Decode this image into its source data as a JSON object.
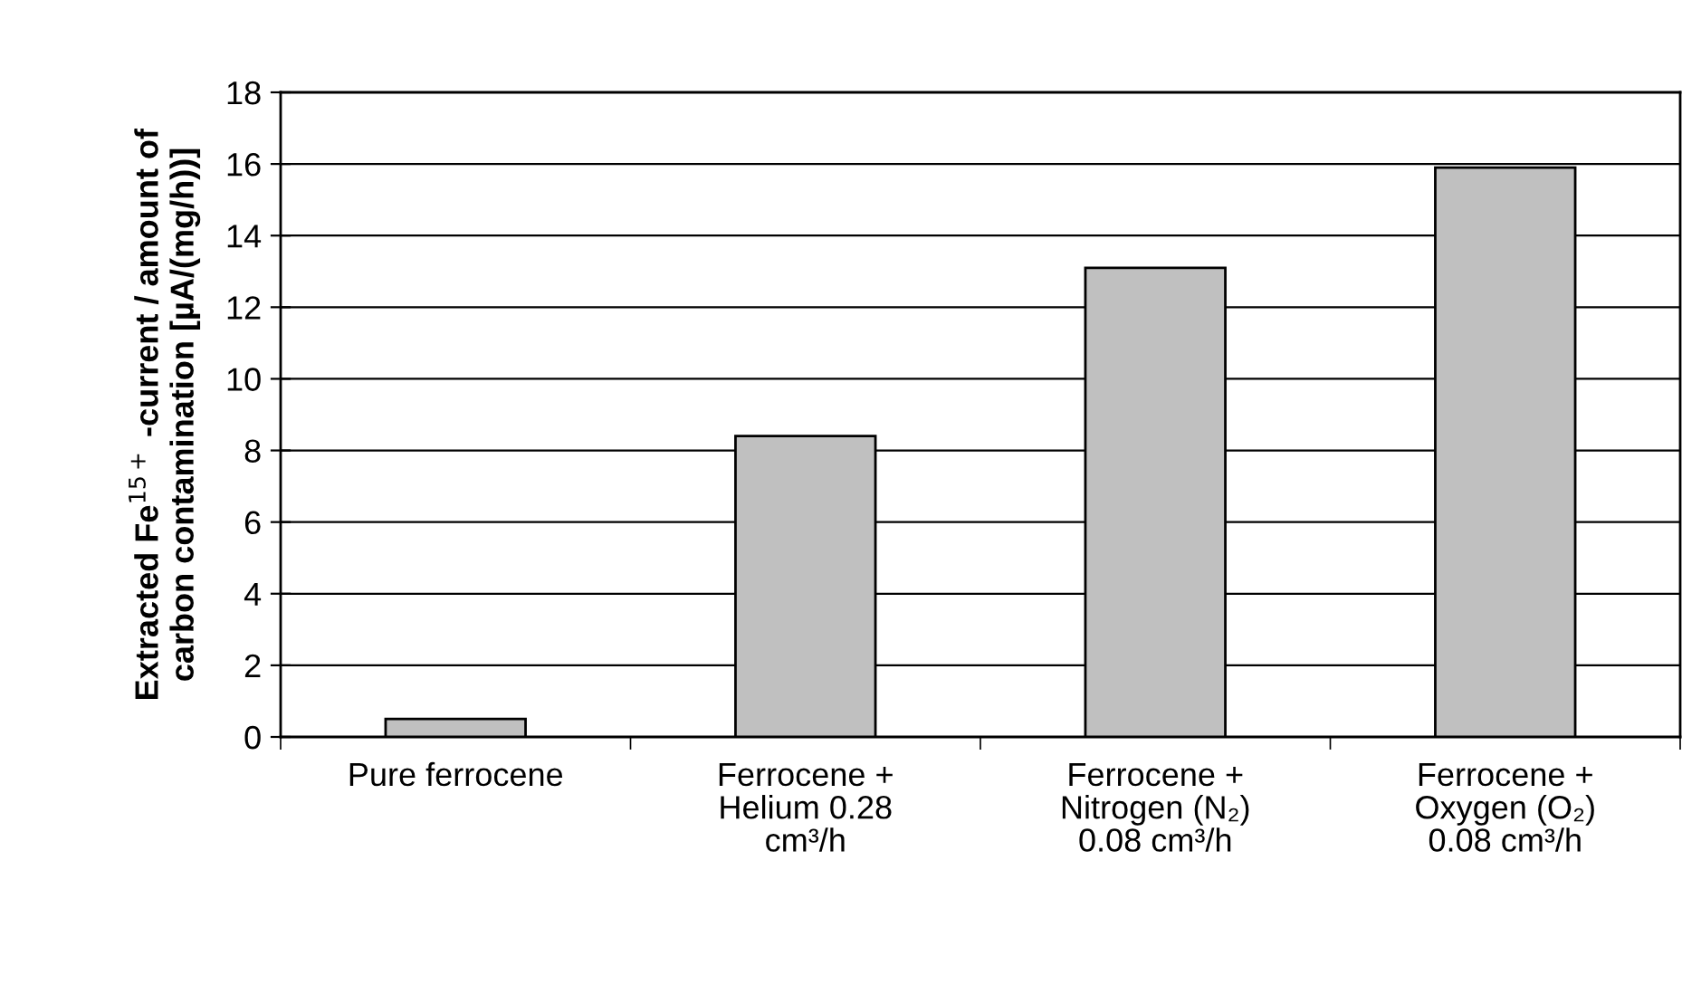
{
  "chart_data": {
    "type": "bar",
    "ylabel": "Extracted Fe$^{15+}$ -current / amount of\ncarbon contamination [µA/(mg/h))]",
    "categories": [
      "Pure ferrocene",
      "Ferrocene +\nHelium 0.28\ncm³/h",
      "Ferrocene +\nNitrogen (N₂)\n0.08 cm³/h",
      "Ferrocene +\nOxygen (O₂)\n0.08 cm³/h"
    ],
    "values": [
      0.5,
      8.4,
      13.1,
      15.9
    ],
    "color": "#c0c0c0",
    "ylim": [
      0,
      18
    ],
    "yticks": [
      0,
      2,
      4,
      6,
      8,
      10,
      12,
      14,
      16,
      18
    ],
    "grid": "y",
    "legend": false
  }
}
